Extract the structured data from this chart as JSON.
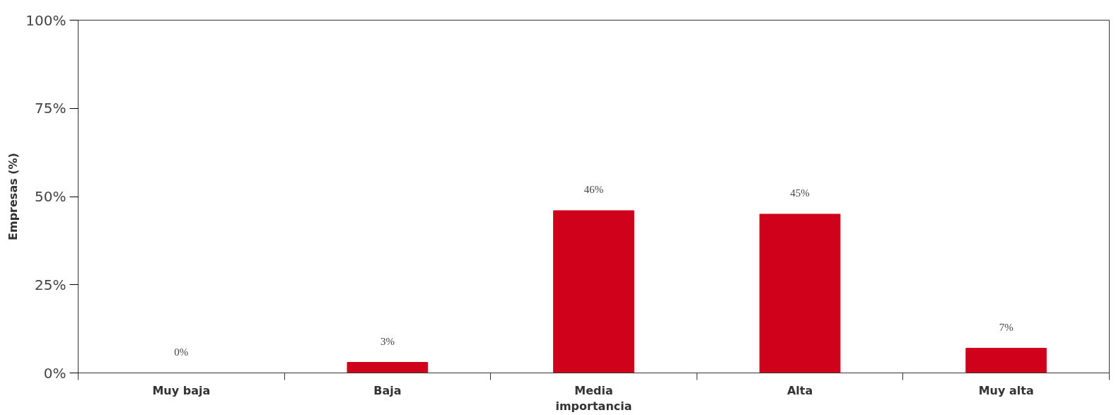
{
  "chart_data": {
    "type": "bar",
    "ylabel": "Empresas (%)",
    "categories": [
      "Muy baja",
      "Baja",
      "Media importancia",
      "Alta",
      "Muy alta"
    ],
    "values": [
      0,
      3,
      46,
      45,
      7
    ],
    "color": "#d0021b",
    "value_labels": [
      "0%",
      "3%",
      "46%",
      "45%",
      "7%"
    ],
    "ylim": [
      0,
      100
    ],
    "yticks": [
      {
        "value": 0,
        "label": "0%"
      },
      {
        "value": 25,
        "label": "25%"
      },
      {
        "value": 50,
        "label": "50%"
      },
      {
        "value": 75,
        "label": "75%"
      },
      {
        "value": 100,
        "label": "100%"
      }
    ],
    "grid": false
  }
}
